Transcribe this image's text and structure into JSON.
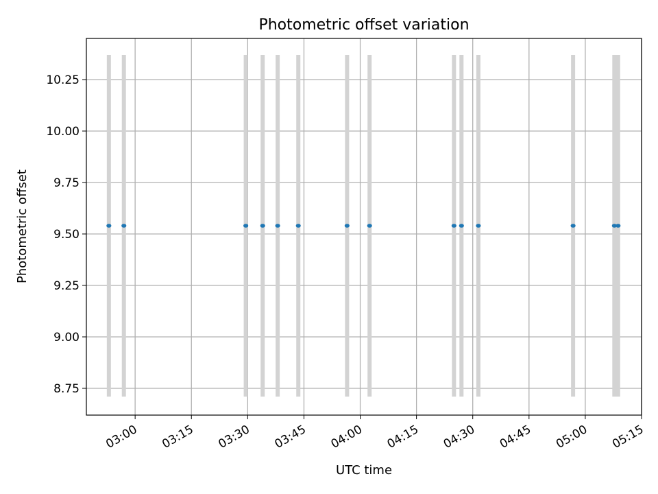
{
  "chart_data": {
    "type": "scatter",
    "title": "Photometric offset variation",
    "xlabel": "UTC time",
    "ylabel": "Photometric offset",
    "x_axis": {
      "type": "time",
      "unit": "HH:MM",
      "range": [
        "02:47",
        "05:15"
      ],
      "ticks": [
        "03:00",
        "03:15",
        "03:30",
        "03:45",
        "04:00",
        "04:15",
        "04:30",
        "04:45",
        "05:00",
        "05:15"
      ]
    },
    "y_axis": {
      "range": [
        8.62,
        10.45
      ],
      "ticks": [
        "8.75",
        "9.00",
        "9.25",
        "9.50",
        "9.75",
        "10.00",
        "10.25"
      ]
    },
    "grid": true,
    "colors": {
      "points": "#1f77b4",
      "error_bars": "#d3d3d3",
      "grid": "#b0b0b0"
    },
    "points": [
      {
        "x": "02:53:00",
        "y": 9.54,
        "err": 0.83
      },
      {
        "x": "02:57:00",
        "y": 9.54,
        "err": 0.83
      },
      {
        "x": "03:29:30",
        "y": 9.54,
        "err": 0.83
      },
      {
        "x": "03:34:00",
        "y": 9.54,
        "err": 0.83
      },
      {
        "x": "03:38:00",
        "y": 9.54,
        "err": 0.83
      },
      {
        "x": "03:43:30",
        "y": 9.54,
        "err": 0.83
      },
      {
        "x": "03:56:30",
        "y": 9.54,
        "err": 0.83
      },
      {
        "x": "04:02:30",
        "y": 9.54,
        "err": 0.83
      },
      {
        "x": "04:25:00",
        "y": 9.54,
        "err": 0.83
      },
      {
        "x": "04:27:00",
        "y": 9.54,
        "err": 0.83
      },
      {
        "x": "04:31:30",
        "y": 9.54,
        "err": 0.83
      },
      {
        "x": "04:56:45",
        "y": 9.54,
        "err": 0.83
      },
      {
        "x": "05:07:45",
        "y": 9.54,
        "err": 0.83
      },
      {
        "x": "05:08:45",
        "y": 9.54,
        "err": 0.83
      }
    ]
  }
}
